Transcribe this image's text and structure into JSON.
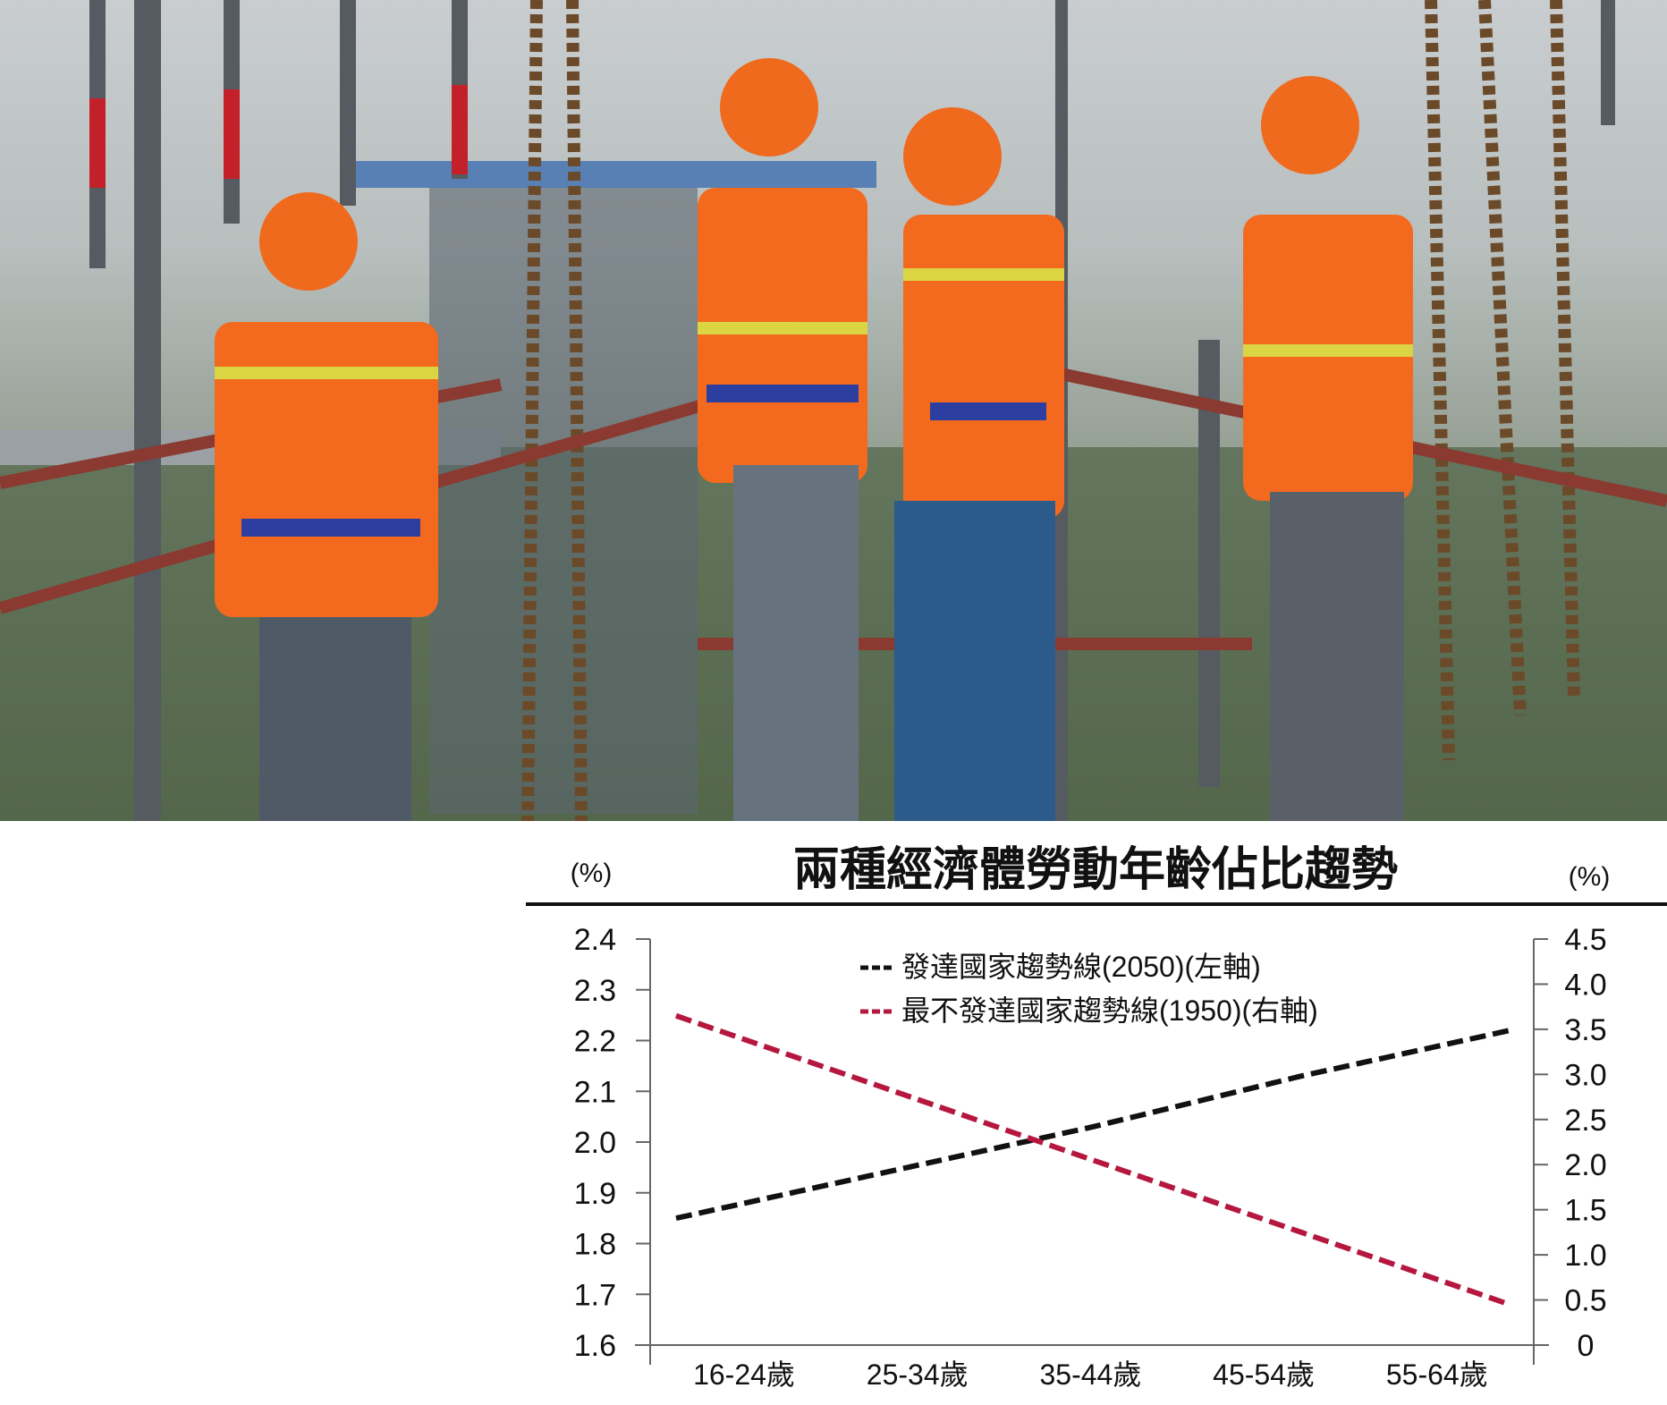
{
  "photo": {
    "subject": "construction workers in orange safety vests and hard hats on scaffolding"
  },
  "chart_data": {
    "type": "line",
    "title": "兩種經濟體勞動年齡佔比趨勢",
    "ylabel_left": "(%)",
    "ylabel_right": "(%)",
    "categories": [
      "16-24歲",
      "25-34歲",
      "35-44歲",
      "45-54歲",
      "55-64歲"
    ],
    "y_left": {
      "range": [
        1.6,
        2.4
      ],
      "ticks": [
        "1.6",
        "1.7",
        "1.8",
        "1.9",
        "2.0",
        "2.1",
        "2.2",
        "2.3",
        "2.4"
      ]
    },
    "y_right": {
      "range": [
        0,
        4.5
      ],
      "ticks": [
        "0",
        "0.5",
        "1.0",
        "1.5",
        "2.0",
        "2.5",
        "3.0",
        "3.5",
        "4.0",
        "4.5"
      ]
    },
    "series": [
      {
        "name": "發達國家趨勢線(2050)(左軸)",
        "axis": "left",
        "color": "#111111",
        "style": "dashed",
        "values": [
          1.85,
          1.94,
          2.03,
          2.13,
          2.22
        ]
      },
      {
        "name": "最不發達國家趨勢線(1950)(右軸)",
        "axis": "right",
        "color": "#b5173f",
        "style": "dashed",
        "values": [
          3.65,
          2.85,
          2.05,
          1.25,
          0.45
        ]
      }
    ],
    "grid": false,
    "legend": "top-center"
  }
}
